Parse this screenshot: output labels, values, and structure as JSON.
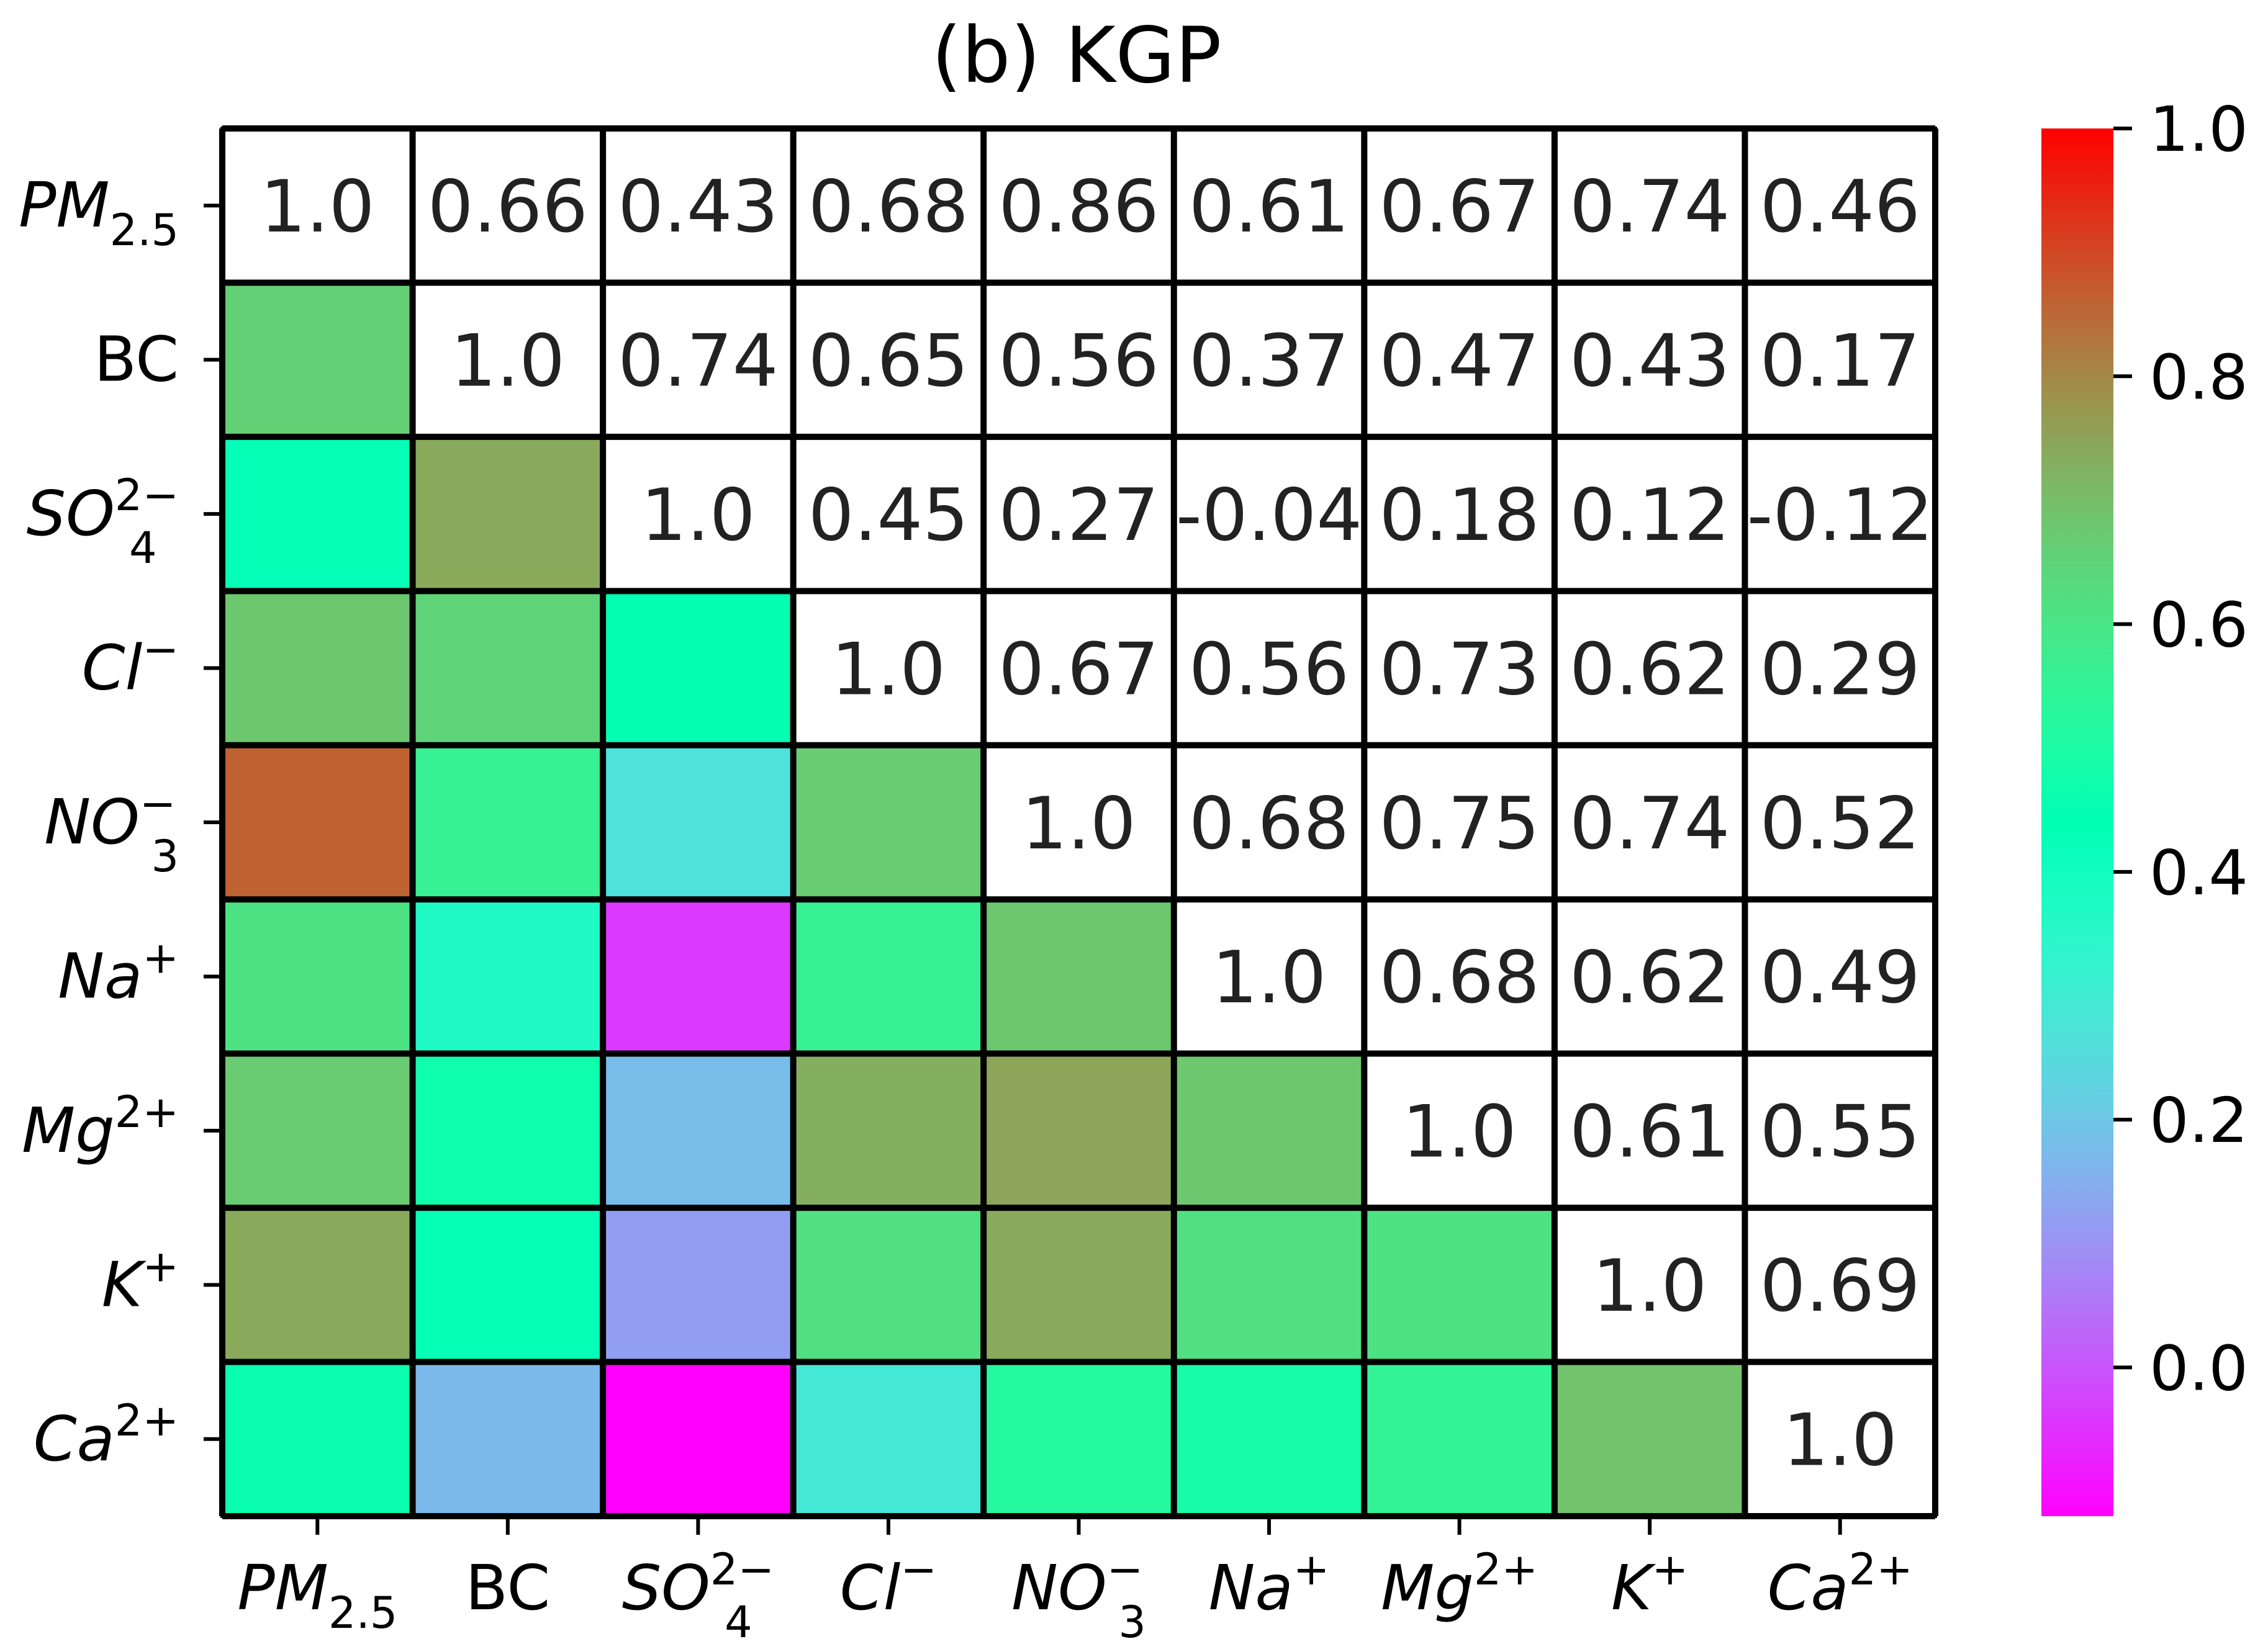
{
  "chart_data": {
    "type": "heatmap",
    "title": "(b) KGP",
    "row_labels": [
      {
        "base": "PM",
        "sub": "2.5",
        "sup": ""
      },
      {
        "base": "BC",
        "sub": "",
        "sup": "",
        "upright": true
      },
      {
        "base": "SO",
        "sub": "4",
        "sup": "2−"
      },
      {
        "base": "Cl",
        "sub": "",
        "sup": "−"
      },
      {
        "base": "NO",
        "sub": "3",
        "sup": "−"
      },
      {
        "base": "Na",
        "sub": "",
        "sup": "+"
      },
      {
        "base": "Mg",
        "sub": "",
        "sup": "2+"
      },
      {
        "base": "K",
        "sub": "",
        "sup": "+"
      },
      {
        "base": "Ca",
        "sub": "",
        "sup": "2+"
      }
    ],
    "upper_labels": [
      [
        "1.0",
        "0.66",
        "0.43",
        "0.68",
        "0.86",
        "0.61",
        "0.67",
        "0.74",
        "0.46"
      ],
      [
        "",
        "1.0",
        "0.74",
        "0.65",
        "0.56",
        "0.37",
        "0.47",
        "0.43",
        "0.17"
      ],
      [
        "",
        "",
        "1.0",
        "0.45",
        "0.27",
        "-0.04",
        "0.18",
        "0.12",
        "-0.12"
      ],
      [
        "",
        "",
        "",
        "1.0",
        "0.67",
        "0.56",
        "0.73",
        "0.62",
        "0.29"
      ],
      [
        "",
        "",
        "",
        "",
        "1.0",
        "0.68",
        "0.75",
        "0.74",
        "0.52"
      ],
      [
        "",
        "",
        "",
        "",
        "",
        "1.0",
        "0.68",
        "0.62",
        "0.49"
      ],
      [
        "",
        "",
        "",
        "",
        "",
        "",
        "1.0",
        "0.61",
        "0.55"
      ],
      [
        "",
        "",
        "",
        "",
        "",
        "",
        "",
        "1.0",
        "0.69"
      ],
      [
        "",
        "",
        "",
        "",
        "",
        "",
        "",
        "",
        "1.0"
      ]
    ],
    "lower_values": [
      [
        null,
        null,
        null,
        null,
        null,
        null,
        null,
        null,
        null
      ],
      [
        0.66,
        null,
        null,
        null,
        null,
        null,
        null,
        null,
        null
      ],
      [
        0.43,
        0.74,
        null,
        null,
        null,
        null,
        null,
        null,
        null
      ],
      [
        0.68,
        0.65,
        0.45,
        null,
        null,
        null,
        null,
        null,
        null
      ],
      [
        0.86,
        0.56,
        0.27,
        0.67,
        null,
        null,
        null,
        null,
        null
      ],
      [
        0.61,
        0.37,
        -0.04,
        0.56,
        0.68,
        null,
        null,
        null,
        null
      ],
      [
        0.67,
        0.47,
        0.18,
        0.73,
        0.75,
        0.68,
        null,
        null,
        null
      ],
      [
        0.74,
        0.43,
        0.12,
        0.62,
        0.74,
        0.62,
        0.61,
        null,
        null
      ],
      [
        0.46,
        0.17,
        -0.12,
        0.29,
        0.52,
        0.49,
        0.55,
        0.69,
        null
      ]
    ],
    "colormap": "rainbow",
    "vmin": -0.12,
    "vmax": 1.0,
    "colorbar_ticks": [
      "0.0",
      "0.2",
      "0.4",
      "0.6",
      "0.8",
      "1.0"
    ]
  }
}
